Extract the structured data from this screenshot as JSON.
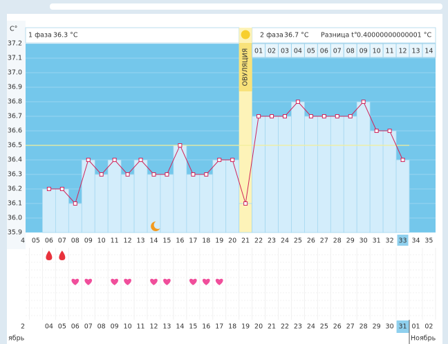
{
  "chart_data": {
    "type": "line",
    "y_unit": "C°",
    "phase1_label": "1 фаза",
    "phase1_value": "36.3 °C",
    "phase2_label": "2 фаза",
    "phase2_value": "36.7 °C",
    "diff_label": "Разница t°",
    "diff_value": "0.40000000000001 °C",
    "ovulation_label": "ОВУЛЯЦИЯ",
    "ovulation_day": "21",
    "today_day": "33",
    "categories": [
      "4",
      "05",
      "06",
      "07",
      "08",
      "09",
      "10",
      "11",
      "12",
      "13",
      "14",
      "15",
      "16",
      "17",
      "18",
      "19",
      "20",
      "21",
      "22",
      "23",
      "24",
      "25",
      "26",
      "27",
      "28",
      "29",
      "30",
      "31",
      "32",
      "33",
      "34",
      "35"
    ],
    "values": [
      null,
      null,
      36.2,
      36.2,
      36.1,
      36.4,
      36.3,
      36.4,
      36.3,
      36.4,
      36.3,
      36.3,
      36.5,
      36.3,
      36.3,
      36.4,
      36.4,
      36.1,
      36.7,
      36.7,
      36.7,
      36.8,
      36.7,
      36.7,
      36.7,
      36.7,
      36.8,
      36.6,
      36.6,
      36.4,
      null,
      null
    ],
    "color": "#d0245a",
    "coverline": 36.5,
    "phase2_days": [
      "01",
      "02",
      "03",
      "04",
      "05",
      "06",
      "07",
      "08",
      "09",
      "10",
      "11",
      "12",
      "13",
      "14"
    ],
    "ylim": [
      35.9,
      37.2
    ],
    "yticks": [
      35.9,
      {
        "value": 36,
        "label": "36.0"
      },
      36.1,
      36.2,
      36.3,
      36.4,
      36.5,
      36.6,
      36.7,
      36.8,
      36.9,
      {
        "value": 37,
        "label": "37.0"
      },
      37.1,
      37.2
    ],
    "bleeding_days": [
      "06",
      "07"
    ],
    "intercourse_days": [
      "08",
      "09",
      "11",
      "12",
      "14",
      "15",
      "17",
      "18",
      "19"
    ],
    "moon_day": "14",
    "dates": [
      "2",
      null,
      "04",
      "05",
      "06",
      "07",
      "08",
      "09",
      "10",
      "11",
      "12",
      "13",
      "14",
      "15",
      "16",
      "17",
      "18",
      "19",
      "20",
      "21",
      "22",
      "23",
      "24",
      "25",
      "26",
      "27",
      "28",
      "29",
      "30",
      "31",
      "01",
      "02"
    ],
    "weekend": [
      false,
      false,
      false,
      true,
      true,
      false,
      false,
      false,
      false,
      false,
      true,
      true,
      false,
      false,
      false,
      false,
      false,
      true,
      true,
      false,
      false,
      false,
      false,
      false,
      true,
      true,
      false,
      false,
      false,
      false,
      false,
      true
    ],
    "month_labels": [
      "ябрь",
      "Ноябрь"
    ]
  }
}
